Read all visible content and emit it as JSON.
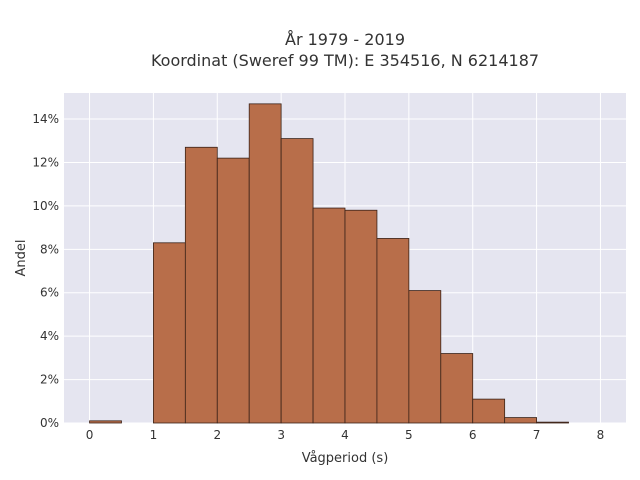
{
  "chart_data": {
    "type": "bar",
    "title_line1": "År 1979 - 2019",
    "title_line2": "Koordinat (Sweref 99 TM): E 354516, N 6214187",
    "xlabel": "Vågperiod (s)",
    "ylabel": "Andel",
    "xlim": [
      -0.4,
      8.4
    ],
    "ylim": [
      0,
      15.2
    ],
    "x_ticks": [
      0,
      1,
      2,
      3,
      4,
      5,
      6,
      7,
      8
    ],
    "y_ticks": [
      0,
      2,
      4,
      6,
      8,
      10,
      12,
      14
    ],
    "y_tick_labels": [
      "0%",
      "2%",
      "4%",
      "6%",
      "8%",
      "10%",
      "12%",
      "14%"
    ],
    "bin_width": 0.5,
    "bins": [
      {
        "start": 0.0,
        "value": 0.1
      },
      {
        "start": 0.5,
        "value": 0.0
      },
      {
        "start": 1.0,
        "value": 8.3
      },
      {
        "start": 1.5,
        "value": 12.7
      },
      {
        "start": 2.0,
        "value": 12.2
      },
      {
        "start": 2.5,
        "value": 14.7
      },
      {
        "start": 3.0,
        "value": 13.1
      },
      {
        "start": 3.5,
        "value": 9.9
      },
      {
        "start": 4.0,
        "value": 9.8
      },
      {
        "start": 4.5,
        "value": 8.5
      },
      {
        "start": 5.0,
        "value": 6.1
      },
      {
        "start": 5.5,
        "value": 3.2
      },
      {
        "start": 6.0,
        "value": 1.1
      },
      {
        "start": 6.5,
        "value": 0.25
      },
      {
        "start": 7.0,
        "value": 0.04
      }
    ],
    "grid": true,
    "colors": {
      "bar_fill": "#b86e4a",
      "bar_edge": "#3a2218",
      "plot_bg": "#e5e5f0",
      "grid": "#ffffff",
      "text": "#333333"
    }
  }
}
